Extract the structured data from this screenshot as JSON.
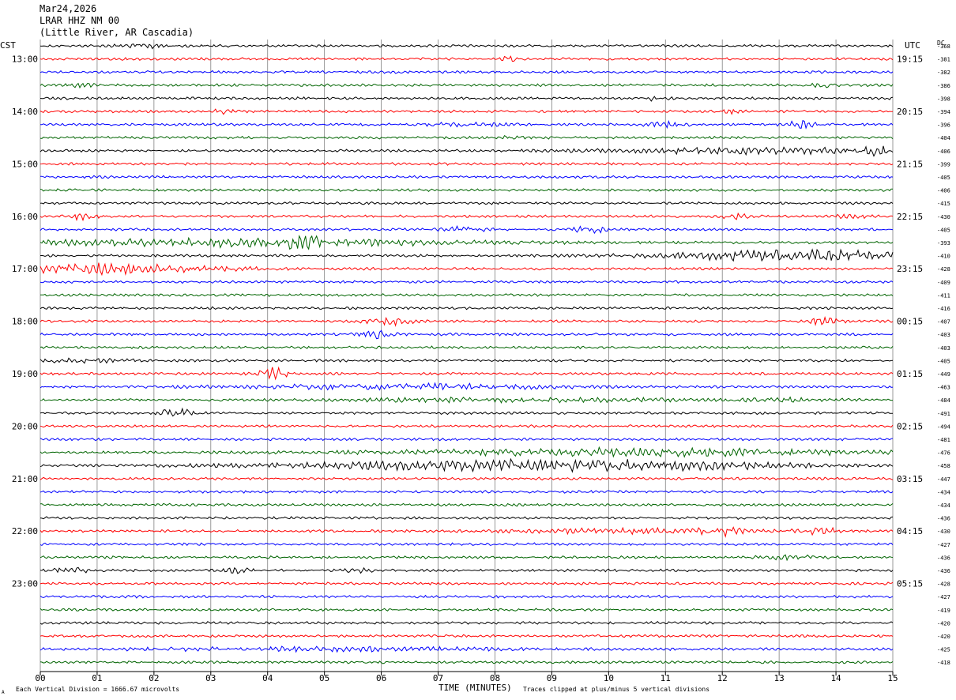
{
  "header": {
    "date": "Mar24,2026",
    "station": "LRAR HHZ NM 00",
    "location": "(Little River, AR Cascadia)"
  },
  "left_zone": "CST",
  "right_zone": "UTC",
  "dc_label": "DC",
  "footer": {
    "left_note": "Each Vertical Division = 1666.67 microvolts",
    "corner_mark": "A",
    "clip_note": "Traces clipped at plus/minus 5 vertical divisions"
  },
  "colors": {
    "black": "#000000",
    "red": "#ff0000",
    "blue": "#0000ff",
    "green": "#006400",
    "grid": "#808080"
  },
  "chart_data": {
    "type": "line",
    "title": "LRAR HHZ NM 00",
    "xlabel": "TIME (MINUTES)",
    "ylabel": "",
    "x_ticks": [
      "00",
      "01",
      "02",
      "03",
      "04",
      "05",
      "06",
      "07",
      "08",
      "09",
      "10",
      "11",
      "12",
      "13",
      "14",
      "15"
    ],
    "xlim": [
      0,
      15
    ],
    "trace_minutes": 15,
    "trace_color_cycle": [
      "black",
      "red",
      "blue",
      "green"
    ],
    "left_hour_labels": [
      "13:00",
      "14:00",
      "15:00",
      "16:00",
      "17:00",
      "18:00",
      "19:00",
      "20:00",
      "21:00",
      "22:00",
      "23:00"
    ],
    "right_hour_labels": [
      "19:15",
      "20:15",
      "21:15",
      "22:15",
      "23:15",
      "00:15",
      "01:15",
      "02:15",
      "03:15",
      "04:15",
      "05:15"
    ],
    "dc_offsets": [
      -368,
      -381,
      -382,
      -386,
      -398,
      -394,
      -396,
      -404,
      -406,
      -399,
      -405,
      -406,
      -415,
      -430,
      -405,
      -393,
      -410,
      -428,
      -409,
      -411,
      -416,
      -407,
      -403,
      -403,
      -405,
      -449,
      -463,
      -484,
      -491,
      -494,
      -481,
      -476,
      -458,
      -447,
      -434,
      -434,
      -436,
      -430,
      -427,
      -436,
      -436,
      -428,
      -427,
      -419,
      -420,
      -420,
      -425,
      -418
    ],
    "events": [
      {
        "trace": 0,
        "center_min": 1.9,
        "width_min": 0.8,
        "amplitude": 1.6
      },
      {
        "trace": 1,
        "center_min": 8.25,
        "width_min": 0.2,
        "amplitude": 2.2
      },
      {
        "trace": 3,
        "center_min": 0.7,
        "width_min": 0.3,
        "amplitude": 1.8
      },
      {
        "trace": 3,
        "center_min": 13.8,
        "width_min": 0.3,
        "amplitude": 1.6
      },
      {
        "trace": 4,
        "center_min": 10.8,
        "width_min": 0.3,
        "amplitude": 1.5
      },
      {
        "trace": 5,
        "center_min": 3.2,
        "width_min": 0.3,
        "amplitude": 2.0
      },
      {
        "trace": 5,
        "center_min": 12.1,
        "width_min": 0.3,
        "amplitude": 1.8
      },
      {
        "trace": 6,
        "center_min": 7.5,
        "width_min": 1.0,
        "amplitude": 1.4
      },
      {
        "trace": 6,
        "center_min": 11.0,
        "width_min": 0.5,
        "amplitude": 2.4
      },
      {
        "trace": 6,
        "center_min": 13.4,
        "width_min": 0.4,
        "amplitude": 2.6
      },
      {
        "trace": 7,
        "center_min": 8.3,
        "width_min": 0.2,
        "amplitude": 1.8
      },
      {
        "trace": 8,
        "center_min": 12.5,
        "width_min": 4.0,
        "amplitude": 2.2
      },
      {
        "trace": 8,
        "center_min": 14.6,
        "width_min": 0.5,
        "amplitude": 3.2
      },
      {
        "trace": 13,
        "center_min": 0.8,
        "width_min": 0.4,
        "amplitude": 2.8
      },
      {
        "trace": 13,
        "center_min": 12.2,
        "width_min": 0.4,
        "amplitude": 2.0
      },
      {
        "trace": 13,
        "center_min": 14.3,
        "width_min": 0.4,
        "amplitude": 1.6
      },
      {
        "trace": 14,
        "center_min": 7.4,
        "width_min": 0.6,
        "amplitude": 2.0
      },
      {
        "trace": 14,
        "center_min": 9.7,
        "width_min": 0.4,
        "amplitude": 3.2
      },
      {
        "trace": 15,
        "center_min": 3.5,
        "width_min": 6.0,
        "amplitude": 3.0
      },
      {
        "trace": 15,
        "center_min": 4.6,
        "width_min": 0.4,
        "amplitude": 5.0
      },
      {
        "trace": 16,
        "center_min": 13.3,
        "width_min": 3.6,
        "amplitude": 4.2
      },
      {
        "trace": 17,
        "center_min": 1.2,
        "width_min": 3.0,
        "amplitude": 3.8
      },
      {
        "trace": 21,
        "center_min": 6.1,
        "width_min": 0.6,
        "amplitude": 2.8
      },
      {
        "trace": 21,
        "center_min": 13.8,
        "width_min": 0.4,
        "amplitude": 3.2
      },
      {
        "trace": 22,
        "center_min": 5.9,
        "width_min": 0.4,
        "amplitude": 3.8
      },
      {
        "trace": 24,
        "center_min": 0.8,
        "width_min": 1.0,
        "amplitude": 1.4
      },
      {
        "trace": 25,
        "center_min": 4.1,
        "width_min": 0.4,
        "amplitude": 5.0
      },
      {
        "trace": 26,
        "center_min": 6.4,
        "width_min": 4.2,
        "amplitude": 2.2
      },
      {
        "trace": 27,
        "center_min": 7.5,
        "width_min": 3.0,
        "amplitude": 1.5
      },
      {
        "trace": 27,
        "center_min": 10.2,
        "width_min": 1.5,
        "amplitude": 1.5
      },
      {
        "trace": 27,
        "center_min": 13.0,
        "width_min": 1.5,
        "amplitude": 1.3
      },
      {
        "trace": 28,
        "center_min": 2.4,
        "width_min": 0.4,
        "amplitude": 5.0
      },
      {
        "trace": 31,
        "center_min": 10.3,
        "width_min": 6.5,
        "amplitude": 3.0
      },
      {
        "trace": 32,
        "center_min": 9.0,
        "width_min": 7.0,
        "amplitude": 4.2
      },
      {
        "trace": 37,
        "center_min": 10.5,
        "width_min": 3.5,
        "amplitude": 1.8
      },
      {
        "trace": 37,
        "center_min": 12.0,
        "width_min": 0.4,
        "amplitude": 3.0
      },
      {
        "trace": 37,
        "center_min": 13.7,
        "width_min": 0.5,
        "amplitude": 2.4
      },
      {
        "trace": 39,
        "center_min": 13.2,
        "width_min": 0.8,
        "amplitude": 1.6
      },
      {
        "trace": 40,
        "center_min": 0.5,
        "width_min": 0.5,
        "amplitude": 2.0
      },
      {
        "trace": 40,
        "center_min": 3.5,
        "width_min": 0.4,
        "amplitude": 2.0
      },
      {
        "trace": 40,
        "center_min": 5.6,
        "width_min": 0.5,
        "amplitude": 1.2
      },
      {
        "trace": 46,
        "center_min": 5.0,
        "width_min": 5.0,
        "amplitude": 1.4
      }
    ]
  }
}
